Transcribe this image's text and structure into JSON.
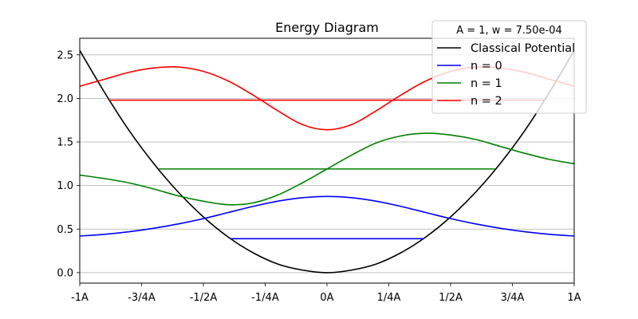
{
  "chart_data": {
    "type": "line",
    "title": "Energy Diagram",
    "legend_title": "A = 1, w = 7.50e-04",
    "legend_position": "top-right",
    "xlabel": "",
    "ylabel": "",
    "xlim": [
      -1,
      1
    ],
    "ylim": [
      -0.12,
      2.69
    ],
    "grid": "horizontal",
    "x_ticks": [
      -1,
      -0.75,
      -0.5,
      -0.25,
      0,
      0.25,
      0.5,
      0.75,
      1
    ],
    "x_tick_labels": [
      "-1A",
      "-3/4A",
      "-1/2A",
      "-1/4A",
      "0A",
      "1/4A",
      "1/2A",
      "3/4A",
      "1A"
    ],
    "y_ticks": [
      0,
      0.5,
      1,
      1.5,
      2,
      2.5
    ],
    "y_tick_labels": [
      "0.0",
      "0.5",
      "1.0",
      "1.5",
      "2.0",
      "2.5"
    ],
    "potential": {
      "name": "Classical Potential",
      "color": "#000000",
      "x": [
        -1,
        -0.9,
        -0.8,
        -0.7,
        -0.6,
        -0.5,
        -0.4,
        -0.3,
        -0.2,
        -0.1,
        0,
        0.1,
        0.2,
        0.3,
        0.4,
        0.5,
        0.6,
        0.7,
        0.8,
        0.9,
        1
      ],
      "y": [
        2.55,
        2.07,
        1.63,
        1.25,
        0.92,
        0.64,
        0.41,
        0.23,
        0.1,
        0.03,
        0,
        0.03,
        0.1,
        0.23,
        0.41,
        0.64,
        0.92,
        1.25,
        1.63,
        2.07,
        2.55
      ]
    },
    "series": [
      {
        "name": "n = 0",
        "color": "#0000ff",
        "energy": 0.39,
        "energy_xrange": [
          -0.39,
          0.39
        ],
        "x": [
          -1,
          -0.9,
          -0.8,
          -0.7,
          -0.6,
          -0.5,
          -0.4,
          -0.3,
          -0.2,
          -0.1,
          0,
          0.1,
          0.2,
          0.3,
          0.4,
          0.5,
          0.6,
          0.7,
          0.8,
          0.9,
          1
        ],
        "y": [
          0.42,
          0.44,
          0.47,
          0.51,
          0.56,
          0.62,
          0.69,
          0.76,
          0.82,
          0.86,
          0.875,
          0.86,
          0.82,
          0.76,
          0.69,
          0.62,
          0.56,
          0.51,
          0.47,
          0.44,
          0.42
        ]
      },
      {
        "name": "n = 1",
        "color": "#008000",
        "energy": 1.19,
        "energy_xrange": [
          -0.68,
          0.68
        ],
        "x": [
          -1,
          -0.9,
          -0.8,
          -0.7,
          -0.6,
          -0.5,
          -0.4,
          -0.3,
          -0.2,
          -0.1,
          0,
          0.1,
          0.2,
          0.3,
          0.4,
          0.5,
          0.6,
          0.7,
          0.8,
          0.9,
          1
        ],
        "y": [
          1.12,
          1.08,
          1.03,
          0.96,
          0.88,
          0.82,
          0.78,
          0.8,
          0.89,
          1.03,
          1.19,
          1.35,
          1.49,
          1.57,
          1.6,
          1.58,
          1.53,
          1.45,
          1.37,
          1.3,
          1.25
        ]
      },
      {
        "name": "n = 2",
        "color": "#ff0000",
        "energy": 1.98,
        "energy_xrange": [
          -0.88,
          0.88
        ],
        "x": [
          -1,
          -0.9,
          -0.8,
          -0.7,
          -0.6,
          -0.5,
          -0.4,
          -0.3,
          -0.2,
          -0.1,
          0,
          0.1,
          0.2,
          0.3,
          0.4,
          0.5,
          0.6,
          0.7,
          0.8,
          0.9,
          1
        ],
        "y": [
          2.14,
          2.22,
          2.3,
          2.35,
          2.36,
          2.31,
          2.2,
          2.04,
          1.86,
          1.7,
          1.64,
          1.7,
          1.86,
          2.04,
          2.2,
          2.31,
          2.36,
          2.35,
          2.3,
          2.22,
          2.14
        ]
      }
    ]
  }
}
